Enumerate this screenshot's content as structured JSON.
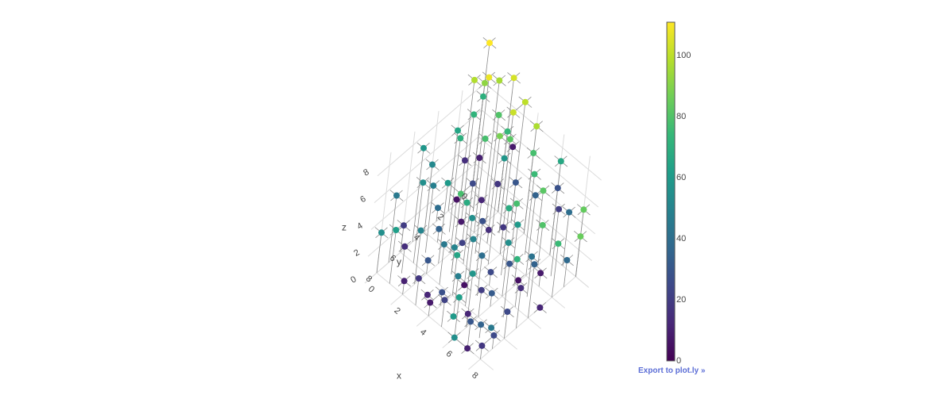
{
  "export_link": "Export to plot.ly »",
  "colors": {
    "background": "#ffffff",
    "grid": "#dcdcdc",
    "stem": "#8c8c8c",
    "export_link": "#5b6dd6",
    "colorscale": [
      "#440154",
      "#482878",
      "#3e4989",
      "#31688e",
      "#26828e",
      "#1f9e89",
      "#35b779",
      "#6ece58",
      "#b5de2b",
      "#fde725"
    ]
  },
  "chart_data": {
    "type": "scatter3d",
    "colorscale_name": "Viridis",
    "axes": {
      "x": {
        "title": "x",
        "ticks": [
          "0",
          "2",
          "4",
          "6",
          "8"
        ],
        "range": [
          0,
          9
        ]
      },
      "y": {
        "title": "y",
        "ticks": [
          "0",
          "2",
          "4",
          "6",
          "8"
        ],
        "range": [
          0,
          9
        ]
      },
      "z": {
        "title": "z",
        "ticks": [
          "0",
          "2",
          "4",
          "6",
          "8"
        ],
        "range": [
          0,
          9
        ]
      }
    },
    "colorbar": {
      "ticks": [
        "0",
        "20",
        "40",
        "60",
        "80",
        "100"
      ],
      "range": [
        0,
        111
      ]
    },
    "grid": true,
    "stems": true,
    "points": [
      {
        "x": 1,
        "y": 2,
        "z": 0,
        "c": 8
      },
      {
        "x": 2,
        "y": 3,
        "z": 0,
        "c": 22
      },
      {
        "x": 3,
        "y": 2,
        "z": 1,
        "c": 15
      },
      {
        "x": 4,
        "y": 5,
        "z": 0,
        "c": 5
      },
      {
        "x": 5,
        "y": 7,
        "z": 0,
        "c": 60
      },
      {
        "x": 6,
        "y": 8,
        "z": 0,
        "c": 55
      },
      {
        "x": 2,
        "y": 6,
        "z": 1,
        "c": 30
      },
      {
        "x": 3,
        "y": 7,
        "z": 0,
        "c": 12
      },
      {
        "x": 1,
        "y": 4,
        "z": 1,
        "c": 35
      },
      {
        "x": 0,
        "y": 3,
        "z": 1,
        "c": 40
      },
      {
        "x": 4,
        "y": 2,
        "z": 2,
        "c": 18
      },
      {
        "x": 5,
        "y": 4,
        "z": 1,
        "c": 25
      },
      {
        "x": 6,
        "y": 5,
        "z": 1,
        "c": 32
      },
      {
        "x": 7,
        "y": 6,
        "z": 0,
        "c": 45
      },
      {
        "x": 2,
        "y": 8,
        "z": 1,
        "c": 10
      },
      {
        "x": 3,
        "y": 5,
        "z": 2,
        "c": 50
      },
      {
        "x": 4,
        "y": 7,
        "z": 1,
        "c": 28
      },
      {
        "x": 0,
        "y": 6,
        "z": 2,
        "c": 20
      },
      {
        "x": 1,
        "y": 7,
        "z": 2,
        "c": 15
      },
      {
        "x": 5,
        "y": 2,
        "z": 3,
        "c": 60
      },
      {
        "x": 6,
        "y": 3,
        "z": 2,
        "c": 72
      },
      {
        "x": 7,
        "y": 2,
        "z": 1,
        "c": 8
      },
      {
        "x": 8,
        "y": 3,
        "z": 0,
        "c": 12
      },
      {
        "x": 8,
        "y": 1,
        "z": 2,
        "c": 38
      },
      {
        "x": 7,
        "y": 4,
        "z": 2,
        "c": 5
      },
      {
        "x": 6,
        "y": 1,
        "z": 3,
        "c": 80
      },
      {
        "x": 8,
        "y": 0,
        "z": 3,
        "c": 85
      },
      {
        "x": 0,
        "y": 1,
        "z": 3,
        "c": 15
      },
      {
        "x": 1,
        "y": 1,
        "z": 4,
        "c": 10
      },
      {
        "x": 2,
        "y": 0,
        "z": 4,
        "c": 58
      },
      {
        "x": 3,
        "y": 0,
        "z": 3,
        "c": 30
      },
      {
        "x": 4,
        "y": 1,
        "z": 3,
        "c": 78
      },
      {
        "x": 5,
        "y": 0,
        "z": 4,
        "c": 82
      },
      {
        "x": 0,
        "y": 8,
        "z": 3,
        "c": 55
      },
      {
        "x": 1,
        "y": 8,
        "z": 4,
        "c": 62
      },
      {
        "x": 2,
        "y": 7,
        "z": 4,
        "c": 50
      },
      {
        "x": 3,
        "y": 6,
        "z": 3,
        "c": 45
      },
      {
        "x": 4,
        "y": 6,
        "z": 3,
        "c": 65
      },
      {
        "x": 5,
        "y": 5,
        "z": 3,
        "c": 40
      },
      {
        "x": 6,
        "y": 6,
        "z": 2,
        "c": 20
      },
      {
        "x": 7,
        "y": 7,
        "z": 1,
        "c": 35
      },
      {
        "x": 8,
        "y": 7,
        "z": 1,
        "c": 25
      },
      {
        "x": 2,
        "y": 4,
        "z": 4,
        "c": 5
      },
      {
        "x": 3,
        "y": 3,
        "z": 4,
        "c": 12
      },
      {
        "x": 4,
        "y": 4,
        "z": 4,
        "c": 28
      },
      {
        "x": 5,
        "y": 3,
        "z": 5,
        "c": 68
      },
      {
        "x": 6,
        "y": 4,
        "z": 4,
        "c": 55
      },
      {
        "x": 7,
        "y": 3,
        "z": 3,
        "c": 42
      },
      {
        "x": 8,
        "y": 2,
        "z": 4,
        "c": 75
      },
      {
        "x": 1,
        "y": 5,
        "z": 5,
        "c": 48
      },
      {
        "x": 0,
        "y": 4,
        "z": 5,
        "c": 52
      },
      {
        "x": 2,
        "y": 5,
        "z": 6,
        "c": 60
      },
      {
        "x": 3,
        "y": 4,
        "z": 6,
        "c": 25
      },
      {
        "x": 4,
        "y": 3,
        "z": 6,
        "c": 18
      },
      {
        "x": 5,
        "y": 6,
        "z": 5,
        "c": 50
      },
      {
        "x": 6,
        "y": 7,
        "z": 4,
        "c": 58
      },
      {
        "x": 0,
        "y": 7,
        "z": 5,
        "c": 45
      },
      {
        "x": 1,
        "y": 6,
        "z": 6,
        "c": 55
      },
      {
        "x": 7,
        "y": 5,
        "z": 4,
        "c": 30
      },
      {
        "x": 8,
        "y": 4,
        "z": 4,
        "c": 35
      },
      {
        "x": 0,
        "y": 5,
        "z": 7,
        "c": 58
      },
      {
        "x": 1,
        "y": 3,
        "z": 7,
        "c": 70
      },
      {
        "x": 2,
        "y": 2,
        "z": 7,
        "c": 78
      },
      {
        "x": 3,
        "y": 1,
        "z": 7,
        "c": 82
      },
      {
        "x": 4,
        "y": 2,
        "z": 8,
        "c": 8
      },
      {
        "x": 5,
        "y": 1,
        "z": 6,
        "c": 75
      },
      {
        "x": 6,
        "y": 2,
        "z": 6,
        "c": 35
      },
      {
        "x": 7,
        "y": 1,
        "z": 5,
        "c": 20
      },
      {
        "x": 0,
        "y": 2,
        "z": 6,
        "c": 65
      },
      {
        "x": 1,
        "y": 2,
        "z": 8,
        "c": 72
      },
      {
        "x": 2,
        "y": 1,
        "z": 8,
        "c": 80
      },
      {
        "x": 3,
        "y": 2,
        "z": 8,
        "c": 88
      },
      {
        "x": 0,
        "y": 0,
        "z": 8,
        "c": 92
      },
      {
        "x": 1,
        "y": 0,
        "z": 9,
        "c": 96
      },
      {
        "x": 8,
        "y": 5,
        "z": 3,
        "c": 15
      },
      {
        "x": 3,
        "y": 8,
        "z": 2,
        "c": 18
      },
      {
        "x": 4,
        "y": 8,
        "z": 1,
        "c": 8
      },
      {
        "x": 5,
        "y": 8,
        "z": 2,
        "c": 22
      },
      {
        "x": 6,
        "y": 0,
        "z": 5,
        "c": 28
      },
      {
        "x": 7,
        "y": 0,
        "z": 4,
        "c": 40
      },
      {
        "x": 4,
        "y": 5,
        "z": 5,
        "c": 55
      },
      {
        "x": 2,
        "y": 3,
        "z": 3,
        "c": 68
      },
      {
        "x": 6,
        "y": 8,
        "z": 3,
        "c": 62
      },
      {
        "x": 3,
        "y": 5,
        "z": 6,
        "c": 78
      },
      {
        "x": 5,
        "y": 7,
        "z": 3,
        "c": 48
      },
      {
        "x": 8,
        "y": 6,
        "z": 2,
        "c": 25
      },
      {
        "x": 7,
        "y": 8,
        "z": 2,
        "c": 30
      },
      {
        "x": 0,
        "y": 0,
        "z": 7,
        "c": 70
      },
      {
        "x": 2,
        "y": 0,
        "z": 6,
        "c": 74
      },
      {
        "x": 4,
        "y": 0,
        "z": 6,
        "c": 78
      },
      {
        "x": 6,
        "y": 0,
        "z": 7,
        "c": 66
      },
      {
        "x": 8,
        "y": 0,
        "z": 5,
        "c": 84
      },
      {
        "x": 3,
        "y": 0,
        "z": 9,
        "c": 100
      },
      {
        "x": 4,
        "y": 0,
        "z": 8,
        "c": 97
      },
      {
        "x": 2,
        "y": 0,
        "z": 10,
        "c": 104
      },
      {
        "x": 1,
        "y": 1,
        "z": 10,
        "c": 108
      },
      {
        "x": 0,
        "y": 0,
        "z": 11,
        "c": 111
      },
      {
        "x": 3,
        "y": 1,
        "z": 9,
        "c": 102
      },
      {
        "x": 0,
        "y": 1,
        "z": 9,
        "c": 98
      },
      {
        "x": 7,
        "y": 8,
        "z": 0,
        "c": 10
      },
      {
        "x": 8,
        "y": 8,
        "z": 1,
        "c": 18
      },
      {
        "x": 6,
        "y": 7,
        "z": 1,
        "c": 12
      }
    ]
  }
}
